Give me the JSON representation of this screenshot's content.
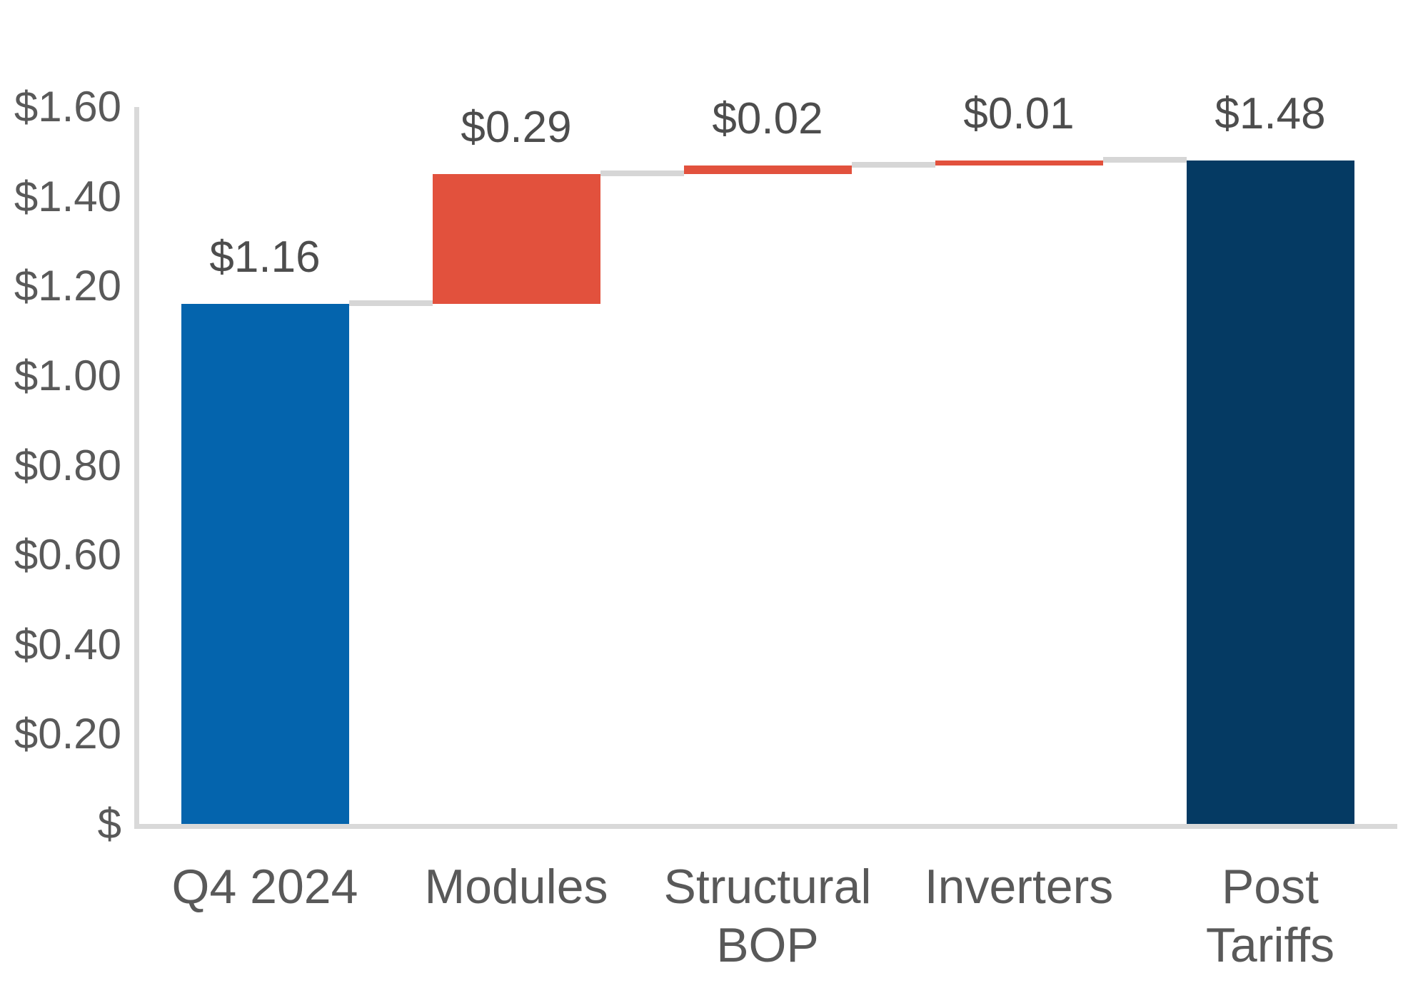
{
  "chart_data": {
    "type": "bar",
    "subtype": "waterfall",
    "title": "",
    "legend": "none",
    "grid": "off",
    "categories": [
      "Q4 2024",
      "Modules",
      "Structural BOP",
      "Inverters",
      "Post Tariffs"
    ],
    "bars": [
      {
        "label": "Q4 2024",
        "label_display": "Q4 2024",
        "value": 1.16,
        "start": 0,
        "end": 1.16,
        "role": "base-total",
        "color": "#0464AD",
        "data_label": "$1.16"
      },
      {
        "label": "Modules",
        "label_display": "Modules",
        "value": 0.29,
        "start": 1.16,
        "end": 1.45,
        "role": "increase",
        "color": "#E2513D",
        "data_label": "$0.29"
      },
      {
        "label": "Structural BOP",
        "label_display": "Structural\nBOP",
        "value": 0.02,
        "start": 1.45,
        "end": 1.47,
        "role": "increase",
        "color": "#E2513D",
        "data_label": "$0.02"
      },
      {
        "label": "Inverters",
        "label_display": "Inverters",
        "value": 0.01,
        "start": 1.47,
        "end": 1.48,
        "role": "increase",
        "color": "#E2513D",
        "data_label": "$0.01"
      },
      {
        "label": "Post Tariffs",
        "label_display": "Post Tariffs",
        "value": 1.48,
        "start": 0,
        "end": 1.48,
        "role": "end-total",
        "color": "#053A63",
        "data_label": "$1.48"
      }
    ],
    "y_axis": {
      "min": 0,
      "max": 1.6,
      "step": 0.2,
      "ticks": [
        {
          "label": "$1.60",
          "value": 1.6
        },
        {
          "label": "$1.40",
          "value": 1.4
        },
        {
          "label": "$1.20",
          "value": 1.2
        },
        {
          "label": "$1.00",
          "value": 1.0
        },
        {
          "label": "$0.80",
          "value": 0.8
        },
        {
          "label": "$0.60",
          "value": 0.6
        },
        {
          "label": "$0.40",
          "value": 0.4
        },
        {
          "label": "$0.20",
          "value": 0.2
        },
        {
          "label": "$",
          "value": 0
        }
      ]
    },
    "colors": {
      "connector": "#D6D6D6",
      "axis_line": "#D9D9D9",
      "tick_text": "#595959",
      "category_text": "#595959",
      "data_label_text": "#4D4D4D"
    }
  }
}
